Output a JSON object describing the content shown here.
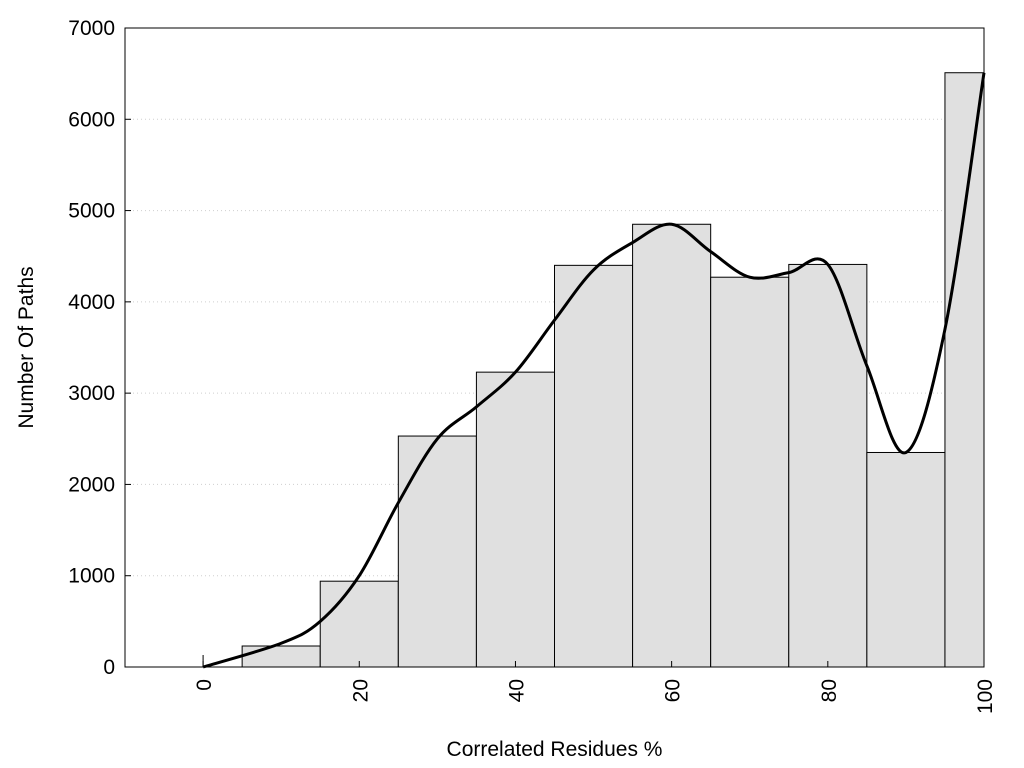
{
  "chart_data": {
    "type": "bar",
    "title": "",
    "xlabel": "Correlated Residues %",
    "ylabel": "Number Of Paths",
    "xlim": [
      -10,
      100
    ],
    "ylim": [
      0,
      7000
    ],
    "bin_width": 10,
    "x": [
      0,
      10,
      20,
      30,
      40,
      50,
      60,
      70,
      80,
      90,
      100
    ],
    "values": [
      0,
      230,
      940,
      2530,
      3230,
      4400,
      4850,
      4270,
      4410,
      2350,
      6510
    ],
    "bar_color": "#e0e0e0",
    "x_ticks": [
      "0",
      "20",
      "40",
      "60",
      "80",
      "100"
    ],
    "y_ticks": [
      "0",
      "1000",
      "2000",
      "3000",
      "4000",
      "5000",
      "6000",
      "7000"
    ],
    "grid": "horizontal dotted",
    "legend": "none",
    "trend_line": {
      "x": [
        0,
        10,
        15,
        20,
        25,
        30,
        35,
        40,
        45,
        50,
        55,
        60,
        65,
        70,
        75,
        80,
        85,
        90,
        95,
        100
      ],
      "y": [
        0,
        260,
        500,
        1000,
        1800,
        2500,
        2850,
        3230,
        3800,
        4350,
        4650,
        4850,
        4550,
        4270,
        4320,
        4410,
        3300,
        2350,
        3700,
        6510
      ]
    }
  }
}
